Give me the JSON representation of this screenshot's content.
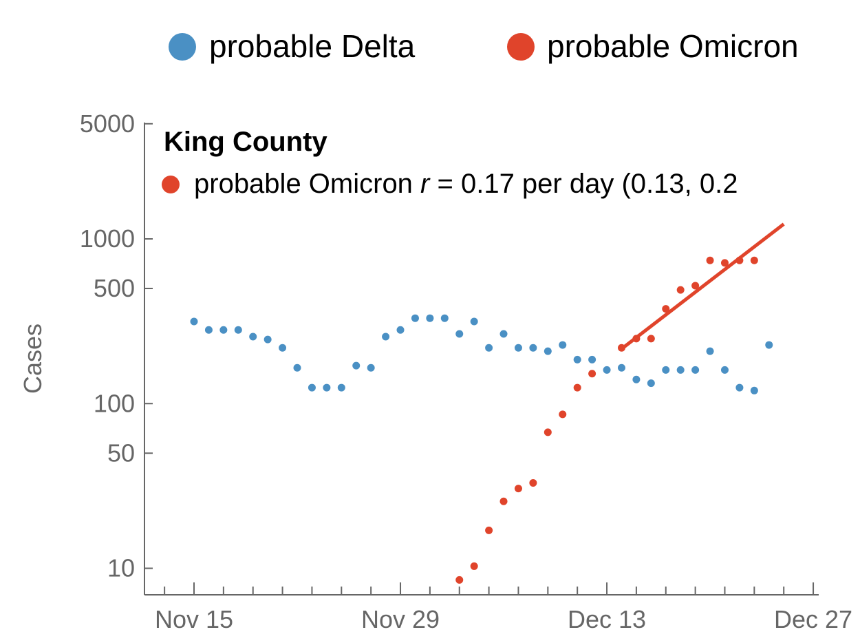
{
  "chart_data": {
    "type": "scatter",
    "yscale": "log",
    "ylim": [
      7.5,
      5000
    ],
    "xlim": [
      "2021-11-10",
      "2021-12-28"
    ],
    "ylabel": "Cases",
    "xlabel": "",
    "x_ticks": [
      "Nov 15",
      "Nov 29",
      "Dec 13",
      "Dec 27"
    ],
    "y_ticks": [
      "10",
      "50",
      "100",
      "500",
      "1000",
      "5000"
    ],
    "legend": {
      "position": "top",
      "entries": [
        {
          "label": "probable Delta",
          "color": "#4a90c4"
        },
        {
          "label": "probable Omicron",
          "color": "#e0442b"
        }
      ]
    },
    "annotation": {
      "title": "King County",
      "text_prefix": "probable Omicron ",
      "text_var": "r",
      "text_suffix": " = 0.17 per day (0.13, 0.2",
      "color": "#e0442b"
    },
    "series": [
      {
        "name": "probable Delta",
        "color": "#4a90c4",
        "points": [
          [
            "2021-11-15",
            315
          ],
          [
            "2021-11-16",
            280
          ],
          [
            "2021-11-17",
            280
          ],
          [
            "2021-11-18",
            280
          ],
          [
            "2021-11-19",
            255
          ],
          [
            "2021-11-20",
            245
          ],
          [
            "2021-11-21",
            218
          ],
          [
            "2021-11-22",
            165
          ],
          [
            "2021-11-23",
            125
          ],
          [
            "2021-11-24",
            125
          ],
          [
            "2021-11-25",
            125
          ],
          [
            "2021-11-26",
            170
          ],
          [
            "2021-11-27",
            165
          ],
          [
            "2021-11-28",
            255
          ],
          [
            "2021-11-29",
            280
          ],
          [
            "2021-11-30",
            330
          ],
          [
            "2021-12-01",
            330
          ],
          [
            "2021-12-02",
            330
          ],
          [
            "2021-12-03",
            265
          ],
          [
            "2021-12-04",
            315
          ],
          [
            "2021-12-05",
            218
          ],
          [
            "2021-12-06",
            265
          ],
          [
            "2021-12-07",
            218
          ],
          [
            "2021-12-08",
            218
          ],
          [
            "2021-12-09",
            208
          ],
          [
            "2021-12-10",
            227
          ],
          [
            "2021-12-11",
            185
          ],
          [
            "2021-12-12",
            185
          ],
          [
            "2021-12-13",
            160
          ],
          [
            "2021-12-14",
            165
          ],
          [
            "2021-12-15",
            140
          ],
          [
            "2021-12-16",
            133
          ],
          [
            "2021-12-17",
            160
          ],
          [
            "2021-12-18",
            160
          ],
          [
            "2021-12-19",
            160
          ],
          [
            "2021-12-20",
            208
          ],
          [
            "2021-12-21",
            160
          ],
          [
            "2021-12-22",
            125
          ],
          [
            "2021-12-23",
            120
          ],
          [
            "2021-12-24",
            227
          ]
        ]
      },
      {
        "name": "probable Omicron",
        "color": "#e0442b",
        "points": [
          [
            "2021-12-03",
            8.5
          ],
          [
            "2021-12-04",
            10.3
          ],
          [
            "2021-12-05",
            17
          ],
          [
            "2021-12-06",
            25.5
          ],
          [
            "2021-12-07",
            30.5
          ],
          [
            "2021-12-08",
            33
          ],
          [
            "2021-12-09",
            67
          ],
          [
            "2021-12-10",
            86
          ],
          [
            "2021-12-11",
            125
          ],
          [
            "2021-12-12",
            152
          ],
          [
            "2021-12-14",
            218
          ],
          [
            "2021-12-15",
            248
          ],
          [
            "2021-12-16",
            248
          ],
          [
            "2021-12-17",
            376
          ],
          [
            "2021-12-18",
            490
          ],
          [
            "2021-12-19",
            520
          ],
          [
            "2021-12-20",
            740
          ],
          [
            "2021-12-21",
            715
          ],
          [
            "2021-12-22",
            740
          ],
          [
            "2021-12-23",
            740
          ]
        ]
      }
    ],
    "fit_line": {
      "series": "probable Omicron",
      "color": "#e0442b",
      "points": [
        [
          "2021-12-14",
          215
        ],
        [
          "2021-12-25",
          1230
        ]
      ]
    }
  }
}
